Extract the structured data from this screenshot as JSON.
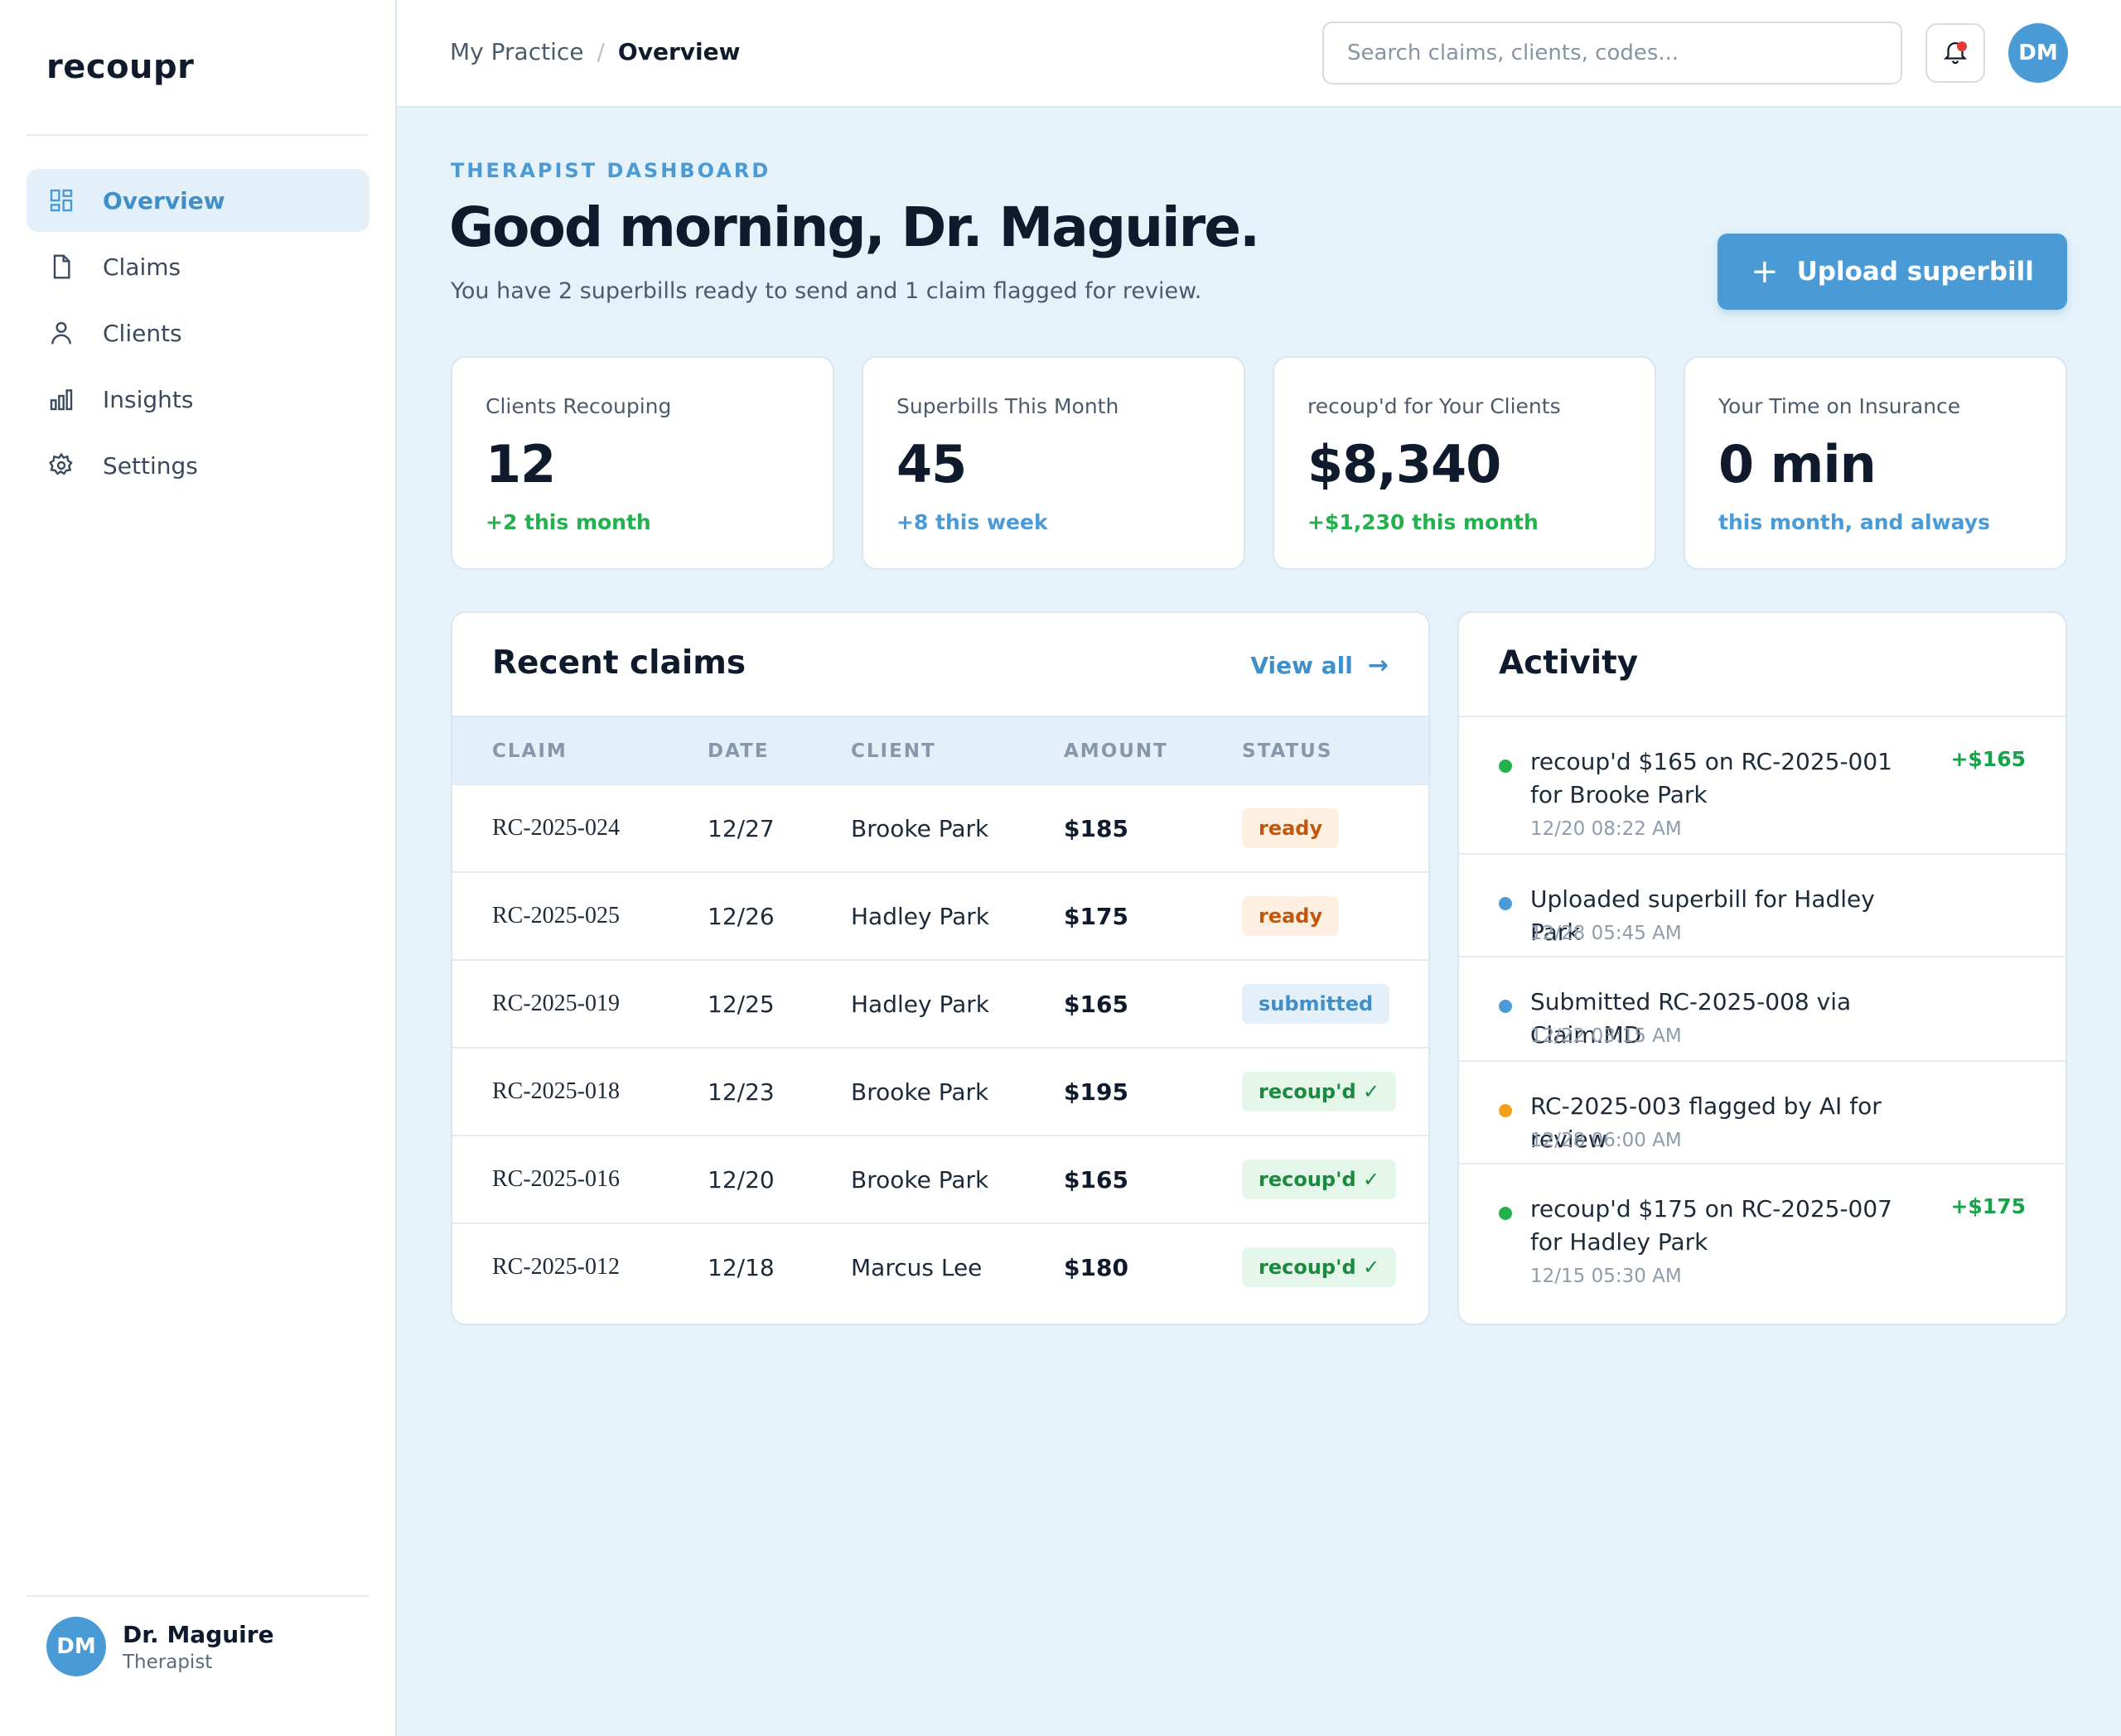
{
  "sidebar": {
    "logo": "recoupr",
    "items": [
      {
        "label": "Overview",
        "icon": "grid-icon",
        "active": true
      },
      {
        "label": "Claims",
        "icon": "document-icon",
        "active": false
      },
      {
        "label": "Clients",
        "icon": "user-icon",
        "active": false
      },
      {
        "label": "Insights",
        "icon": "bar-chart-icon",
        "active": false
      },
      {
        "label": "Settings",
        "icon": "gear-icon",
        "active": false
      }
    ],
    "user": {
      "initials": "DM",
      "name": "Dr. Maguire",
      "role": "Therapist"
    }
  },
  "topbar": {
    "breadcrumb": [
      "My Practice",
      "Overview"
    ],
    "separator": "/",
    "search_placeholder": "Search claims, clients, codes...",
    "avatar_initials": "DM"
  },
  "header": {
    "eyebrow": "THERAPIST DASHBOARD",
    "greeting": "Good morning, Dr. Maguire.",
    "subtitle": "You have 2 superbills ready to send and 1 claim flagged for review.",
    "upload_label": "Upload superbill",
    "upload_icon": "+"
  },
  "stats": [
    {
      "label": "Clients Recouping",
      "value": "12",
      "note": "+2 this month",
      "note_color": "#22b14c"
    },
    {
      "label": "Superbills This Month",
      "value": "45",
      "note": "+8 this week",
      "note_color": "#4a9ad6"
    },
    {
      "label": "recoup'd for Your Clients",
      "value": "$8,340",
      "note": "+$1,230 this month",
      "note_color": "#22b14c"
    },
    {
      "label": "Your Time on Insurance",
      "value": "0 min",
      "note": "this month, and always",
      "note_color": "#4a9ad6"
    }
  ],
  "claims": {
    "title": "Recent claims",
    "view_all": "View all",
    "view_all_icon": "→",
    "columns": [
      "CLAIM",
      "DATE",
      "CLIENT",
      "AMOUNT",
      "STATUS"
    ],
    "rows": [
      {
        "claim": "RC-2025-024",
        "date": "12/27",
        "client": "Brooke Park",
        "amount": "$185",
        "status": "ready"
      },
      {
        "claim": "RC-2025-025",
        "date": "12/26",
        "client": "Hadley Park",
        "amount": "$175",
        "status": "ready"
      },
      {
        "claim": "RC-2025-019",
        "date": "12/25",
        "client": "Hadley Park",
        "amount": "$165",
        "status": "submitted"
      },
      {
        "claim": "RC-2025-018",
        "date": "12/23",
        "client": "Brooke Park",
        "amount": "$195",
        "status": "recoup'd ✓"
      },
      {
        "claim": "RC-2025-016",
        "date": "12/20",
        "client": "Brooke Park",
        "amount": "$165",
        "status": "recoup'd ✓"
      },
      {
        "claim": "RC-2025-012",
        "date": "12/18",
        "client": "Marcus Lee",
        "amount": "$180",
        "status": "recoup'd ✓"
      }
    ],
    "status_colors": {
      "ready": {
        "bg": "#fdf0e0",
        "fg": "#c2570c"
      },
      "submitted": {
        "bg": "#e3f0fa",
        "fg": "#3f8fc9"
      },
      "recoup'd ✓": {
        "bg": "#e4f6e9",
        "fg": "#1a8a3e"
      }
    }
  },
  "activity": {
    "title": "Activity",
    "items": [
      {
        "text": "recoup'd $165 on RC-2025-001 for Brooke Park",
        "time": "12/20 08:22 AM",
        "amount": "+$165",
        "dot": "#22b14c"
      },
      {
        "text": "Uploaded superbill for Hadley Park",
        "time": "12/28 05:45 AM",
        "amount": "",
        "dot": "#4a9ad6"
      },
      {
        "text": "Submitted RC-2025-008 via Claim.MD",
        "time": "12/22 03:15 AM",
        "amount": "",
        "dot": "#4a9ad6"
      },
      {
        "text": "RC-2025-003 flagged by AI for review",
        "time": "12/28 06:00 AM",
        "amount": "",
        "dot": "#f5a01a"
      },
      {
        "text": "recoup'd $175 on RC-2025-007 for Hadley Park",
        "time": "12/15 05:30 AM",
        "amount": "+$175",
        "dot": "#22b14c"
      }
    ]
  }
}
